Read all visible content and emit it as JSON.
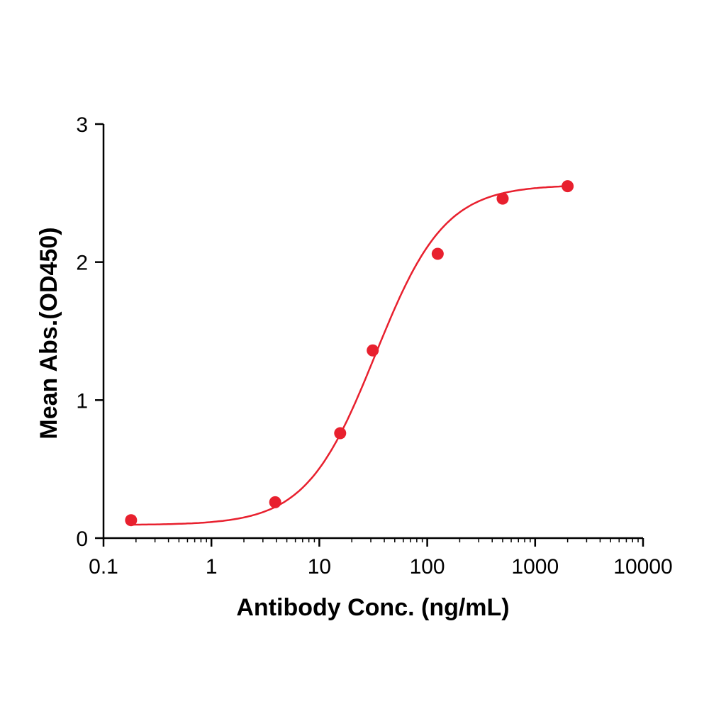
{
  "chart_data": {
    "type": "scatter",
    "title": "",
    "xlabel": "Antibody Conc. (ng/mL)",
    "ylabel": "Mean Abs.(OD450)",
    "xscale": "log",
    "xlim": [
      0.1,
      10000
    ],
    "ylim": [
      0,
      3
    ],
    "xticks": [
      "0.1",
      "1",
      "10",
      "100",
      "1000",
      "10000"
    ],
    "yticks": [
      "0",
      "1",
      "2",
      "3"
    ],
    "grid": false,
    "legend": "none",
    "color": "#e8202e",
    "fit_curve": "sigmoidal (4-parameter logistic)",
    "series": [
      {
        "x": [
          0.18,
          3.9,
          15.6,
          31.25,
          125,
          500,
          2000
        ],
        "y": [
          0.13,
          0.26,
          0.76,
          1.36,
          2.06,
          2.46,
          2.55
        ]
      }
    ]
  }
}
